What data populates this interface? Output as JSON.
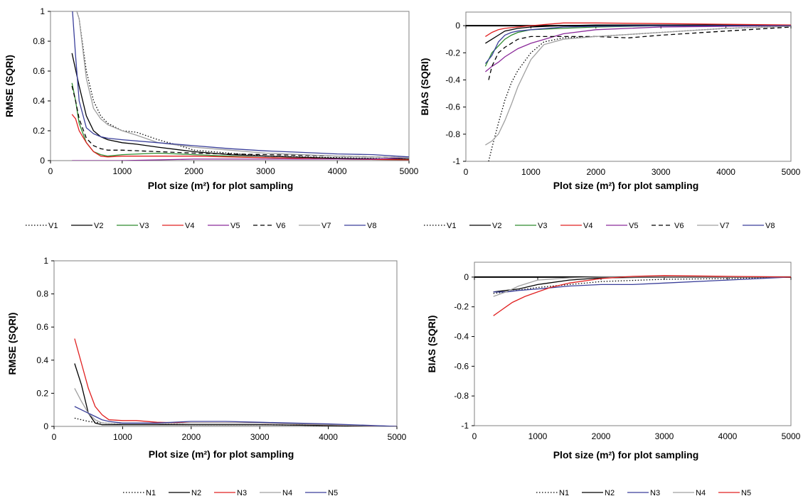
{
  "chart_data": [
    {
      "id": "top-left",
      "type": "line",
      "xlabel": "Plot size (m²) for plot sampling",
      "ylabel": "RMSE (SQRI)",
      "xlim": [
        0,
        5000
      ],
      "ylim": [
        0,
        1
      ],
      "xticks": [
        "0",
        "1000",
        "2000",
        "3000",
        "4000",
        "5000"
      ],
      "yticks": [
        "0",
        "0.2",
        "0.4",
        "0.6",
        "0.8",
        "1"
      ],
      "legend_position": "bottom",
      "series": [
        {
          "name": "V1",
          "color": "#000000",
          "style": "dotted",
          "x": [
            300,
            400,
            500,
            600,
            700,
            800,
            1000,
            1200,
            1500,
            1800,
            2000,
            2500,
            3000,
            4000,
            5000
          ],
          "y": [
            1.1,
            0.95,
            0.6,
            0.4,
            0.3,
            0.25,
            0.2,
            0.19,
            0.14,
            0.1,
            0.07,
            0.05,
            0.03,
            0.02,
            0.01
          ]
        },
        {
          "name": "V2",
          "color": "#000000",
          "style": "solid",
          "x": [
            300,
            400,
            500,
            600,
            700,
            800,
            1000,
            1200,
            1500,
            2000,
            2500,
            3000,
            4000,
            5000
          ],
          "y": [
            0.72,
            0.5,
            0.3,
            0.2,
            0.16,
            0.14,
            0.12,
            0.11,
            0.09,
            0.06,
            0.04,
            0.03,
            0.015,
            0.01
          ]
        },
        {
          "name": "V3",
          "color": "#2e8b2e",
          "style": "solid",
          "x": [
            300,
            350,
            400,
            500,
            600,
            700,
            800,
            1000,
            1500,
            2000,
            2500,
            3000,
            4000,
            5000
          ],
          "y": [
            0.52,
            0.4,
            0.25,
            0.12,
            0.06,
            0.04,
            0.03,
            0.04,
            0.05,
            0.04,
            0.03,
            0.02,
            0.01,
            0.005
          ]
        },
        {
          "name": "V4",
          "color": "#e02020",
          "style": "solid",
          "x": [
            300,
            350,
            400,
            500,
            600,
            700,
            800,
            1000,
            1500,
            2000,
            2500,
            3000,
            4000,
            5000
          ],
          "y": [
            0.31,
            0.28,
            0.2,
            0.12,
            0.06,
            0.03,
            0.025,
            0.03,
            0.03,
            0.03,
            0.025,
            0.02,
            0.01,
            0.005
          ]
        },
        {
          "name": "V5",
          "color": "#8b2a9a",
          "style": "solid",
          "x": [
            300,
            1000,
            2000,
            3000,
            4000,
            4500,
            5000
          ],
          "y": [
            0.0,
            0.0,
            0.01,
            0.01,
            0.01,
            0.01,
            0.02
          ]
        },
        {
          "name": "V6",
          "color": "#000000",
          "style": "dashed",
          "x": [
            300,
            350,
            400,
            500,
            600,
            700,
            800,
            1000,
            1500,
            2000,
            2500,
            3000,
            4000,
            5000
          ],
          "y": [
            0.5,
            0.4,
            0.28,
            0.15,
            0.1,
            0.08,
            0.07,
            0.07,
            0.06,
            0.05,
            0.045,
            0.04,
            0.03,
            0.02
          ]
        },
        {
          "name": "V7",
          "color": "#a0a0a0",
          "style": "solid",
          "x": [
            300,
            400,
            500,
            600,
            700,
            800,
            1000,
            1200,
            1500,
            2000,
            2500,
            3000,
            4000,
            5000
          ],
          "y": [
            1.1,
            0.95,
            0.55,
            0.35,
            0.28,
            0.24,
            0.2,
            0.17,
            0.12,
            0.09,
            0.07,
            0.05,
            0.03,
            0.02
          ]
        },
        {
          "name": "V8",
          "color": "#3a3f9a",
          "style": "solid",
          "x": [
            300,
            350,
            400,
            500,
            600,
            700,
            800,
            1000,
            1500,
            2000,
            2500,
            3000,
            3500,
            4000,
            4500,
            5000
          ],
          "y": [
            1.05,
            0.7,
            0.4,
            0.22,
            0.18,
            0.16,
            0.15,
            0.14,
            0.12,
            0.1,
            0.08,
            0.065,
            0.055,
            0.045,
            0.04,
            0.025
          ]
        }
      ]
    },
    {
      "id": "top-right",
      "type": "line",
      "xlabel": "Plot size (m²) for plot sampling",
      "ylabel": "BIAS (SQRI)",
      "xlim": [
        0,
        5000
      ],
      "ylim": [
        -1,
        0.1
      ],
      "xticks": [
        "0",
        "1000",
        "2000",
        "3000",
        "4000",
        "5000"
      ],
      "yticks": [
        "0",
        "-0.2",
        "-0.4",
        "-0.6",
        "-0.8",
        "-1"
      ],
      "legend_position": "bottom",
      "series": [
        {
          "name": "V1",
          "color": "#000000",
          "style": "dotted",
          "x": [
            350,
            400,
            500,
            600,
            700,
            800,
            1000,
            1200,
            1500,
            2000,
            3000,
            4000,
            5000
          ],
          "y": [
            -1.0,
            -0.9,
            -0.72,
            -0.55,
            -0.42,
            -0.33,
            -0.2,
            -0.12,
            -0.09,
            -0.08,
            -0.05,
            -0.02,
            -0.005
          ]
        },
        {
          "name": "V2",
          "color": "#000000",
          "style": "solid",
          "x": [
            300,
            400,
            500,
            600,
            800,
            1000,
            1500,
            2000,
            3000,
            4000,
            5000
          ],
          "y": [
            -0.13,
            -0.1,
            -0.07,
            -0.04,
            -0.02,
            -0.01,
            0.0,
            0.005,
            0.005,
            0.005,
            0.0
          ]
        },
        {
          "name": "V3",
          "color": "#2e8b2e",
          "style": "solid",
          "x": [
            300,
            400,
            500,
            600,
            700,
            800,
            1000,
            1500,
            2000,
            3000,
            4000,
            5000
          ],
          "y": [
            -0.3,
            -0.2,
            -0.15,
            -0.1,
            -0.07,
            -0.05,
            -0.03,
            -0.02,
            -0.01,
            0.0,
            0.0,
            0.0
          ]
        },
        {
          "name": "V4",
          "color": "#e02020",
          "style": "solid",
          "x": [
            300,
            400,
            500,
            600,
            800,
            1000,
            1500,
            2000,
            3000,
            4000,
            5000
          ],
          "y": [
            -0.08,
            -0.05,
            -0.03,
            -0.02,
            -0.01,
            0.0,
            0.02,
            0.02,
            0.015,
            0.01,
            0.005
          ]
        },
        {
          "name": "V5",
          "color": "#8b2a9a",
          "style": "solid",
          "x": [
            300,
            400,
            500,
            600,
            800,
            1000,
            1500,
            2000,
            3000,
            4000,
            5000
          ],
          "y": [
            -0.34,
            -0.3,
            -0.27,
            -0.23,
            -0.17,
            -0.13,
            -0.06,
            -0.03,
            -0.01,
            -0.005,
            0.0
          ]
        },
        {
          "name": "V6",
          "color": "#000000",
          "style": "dashed",
          "x": [
            350,
            400,
            500,
            600,
            700,
            800,
            1000,
            1500,
            2000,
            2500,
            3000,
            4000,
            5000
          ],
          "y": [
            -0.4,
            -0.3,
            -0.2,
            -0.16,
            -0.13,
            -0.1,
            -0.08,
            -0.08,
            -0.08,
            -0.09,
            -0.07,
            -0.04,
            -0.01
          ]
        },
        {
          "name": "V7",
          "color": "#a0a0a0",
          "style": "solid",
          "x": [
            300,
            400,
            500,
            600,
            700,
            800,
            1000,
            1200,
            1500,
            2000,
            3000,
            4000,
            5000
          ],
          "y": [
            -0.88,
            -0.85,
            -0.8,
            -0.7,
            -0.58,
            -0.45,
            -0.25,
            -0.14,
            -0.1,
            -0.08,
            -0.05,
            -0.02,
            -0.005
          ]
        },
        {
          "name": "V8",
          "color": "#3a3f9a",
          "style": "solid",
          "x": [
            300,
            400,
            500,
            600,
            700,
            800,
            1000,
            1500,
            2000,
            3000,
            4000,
            5000
          ],
          "y": [
            -0.28,
            -0.22,
            -0.12,
            -0.07,
            -0.05,
            -0.04,
            -0.03,
            -0.01,
            -0.005,
            0.0,
            0.0,
            0.0
          ]
        }
      ]
    },
    {
      "id": "bottom-left",
      "type": "line",
      "xlabel": "Plot size (m²) for plot sampling",
      "ylabel": "RMSE (SQRI)",
      "xlim": [
        0,
        5000
      ],
      "ylim": [
        0,
        1
      ],
      "xticks": [
        "0",
        "1000",
        "2000",
        "3000",
        "4000",
        "5000"
      ],
      "yticks": [
        "0",
        "0.2",
        "0.4",
        "0.6",
        "0.8",
        "1"
      ],
      "legend_position": "bottom",
      "series": [
        {
          "name": "N1",
          "color": "#000000",
          "style": "dotted",
          "x": [
            300,
            500,
            700,
            1000,
            2000,
            3000,
            4000,
            5000
          ],
          "y": [
            0.05,
            0.03,
            0.02,
            0.015,
            0.01,
            0.01,
            0.005,
            0.0
          ]
        },
        {
          "name": "N2",
          "color": "#000000",
          "style": "solid",
          "x": [
            300,
            400,
            500,
            600,
            700,
            1000,
            2000,
            3000,
            4000,
            5000
          ],
          "y": [
            0.38,
            0.25,
            0.08,
            0.02,
            0.01,
            0.01,
            0.01,
            0.01,
            0.005,
            0.0
          ]
        },
        {
          "name": "N3",
          "color": "#e02020",
          "style": "solid",
          "x": [
            300,
            400,
            500,
            600,
            700,
            800,
            1000,
            1200,
            1500,
            2000,
            2500,
            3000,
            4000,
            5000
          ],
          "y": [
            0.53,
            0.38,
            0.23,
            0.12,
            0.07,
            0.04,
            0.035,
            0.035,
            0.025,
            0.02,
            0.02,
            0.02,
            0.01,
            0.0
          ]
        },
        {
          "name": "N4",
          "color": "#a0a0a0",
          "style": "solid",
          "x": [
            300,
            400,
            500,
            600,
            700,
            1000,
            1500,
            2000,
            2500,
            3000,
            4000,
            5000
          ],
          "y": [
            0.23,
            0.15,
            0.08,
            0.04,
            0.02,
            0.015,
            0.015,
            0.02,
            0.02,
            0.02,
            0.01,
            0.0
          ]
        },
        {
          "name": "N5",
          "color": "#3a3f9a",
          "style": "solid",
          "x": [
            300,
            400,
            500,
            600,
            700,
            800,
            1000,
            1500,
            2000,
            2500,
            3000,
            4000,
            5000
          ],
          "y": [
            0.12,
            0.1,
            0.08,
            0.06,
            0.04,
            0.03,
            0.02,
            0.02,
            0.03,
            0.03,
            0.025,
            0.015,
            0.0
          ]
        }
      ]
    },
    {
      "id": "bottom-right",
      "type": "line",
      "xlabel": "Plot size (m²) for plot sampling",
      "ylabel": "BIAS (SQRI)",
      "xlim": [
        0,
        5000
      ],
      "ylim": [
        -1,
        0.1
      ],
      "xticks": [
        "0",
        "1000",
        "2000",
        "3000",
        "4000",
        "5000"
      ],
      "yticks": [
        "0",
        "-0.2",
        "-0.4",
        "-0.6",
        "-0.8",
        "-1"
      ],
      "legend_position": "bottom",
      "series": [
        {
          "name": "N1",
          "color": "#000000",
          "style": "dotted",
          "x": [
            300,
            500,
            1000,
            1500,
            2000,
            3000,
            4000,
            5000
          ],
          "y": [
            -0.11,
            -0.1,
            -0.07,
            -0.05,
            -0.03,
            -0.015,
            -0.01,
            0.0
          ]
        },
        {
          "name": "N2",
          "color": "#000000",
          "style": "solid",
          "x": [
            300,
            500,
            700,
            1000,
            1500,
            2000,
            3000,
            4000,
            5000
          ],
          "y": [
            -0.1,
            -0.09,
            -0.08,
            -0.05,
            -0.02,
            -0.005,
            0.0,
            0.0,
            0.0
          ]
        },
        {
          "name": "N3",
          "color": "#3a3f9a",
          "style": "solid",
          "x": [
            300,
            500,
            700,
            1000,
            1500,
            2000,
            2500,
            3000,
            4000,
            5000
          ],
          "y": [
            -0.1,
            -0.1,
            -0.09,
            -0.08,
            -0.06,
            -0.05,
            -0.05,
            -0.04,
            -0.02,
            0.0
          ]
        },
        {
          "name": "N4",
          "color": "#a0a0a0",
          "style": "solid",
          "x": [
            300,
            500,
            700,
            1000,
            1500,
            2000,
            3000,
            4000,
            5000
          ],
          "y": [
            -0.13,
            -0.1,
            -0.06,
            -0.02,
            -0.005,
            0.0,
            0.0,
            0.0,
            0.0
          ]
        },
        {
          "name": "N5",
          "color": "#e02020",
          "style": "solid",
          "x": [
            300,
            400,
            500,
            600,
            800,
            1000,
            1200,
            1500,
            2000,
            2500,
            3000,
            4000,
            5000
          ],
          "y": [
            -0.26,
            -0.23,
            -0.2,
            -0.17,
            -0.13,
            -0.1,
            -0.07,
            -0.04,
            -0.01,
            0.005,
            0.01,
            0.005,
            0.0
          ]
        }
      ]
    }
  ]
}
